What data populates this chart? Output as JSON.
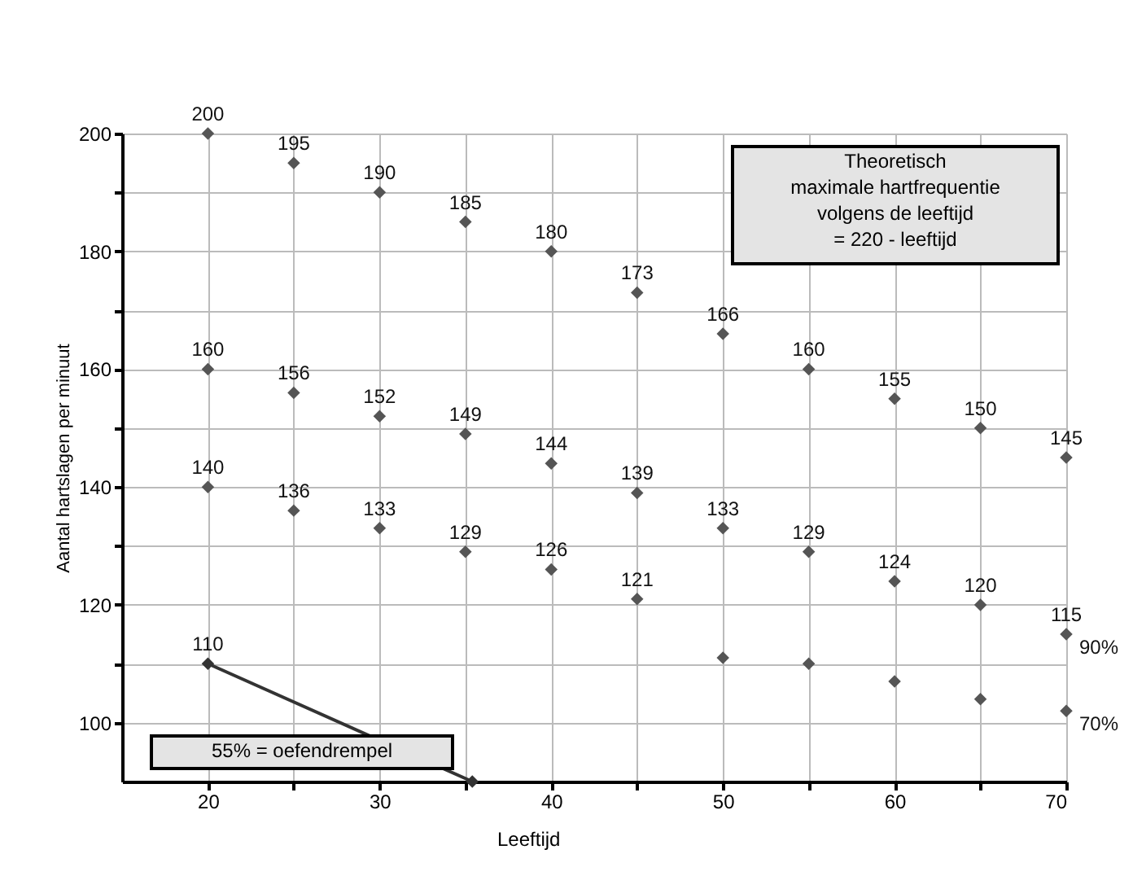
{
  "chart_data": {
    "type": "scatter",
    "xlabel": "Leeftijd",
    "ylabel": "Aantal hartslagen per minuut",
    "x": [
      20,
      25,
      30,
      35,
      40,
      45,
      50,
      55,
      60,
      65,
      70
    ],
    "xlim": [
      15,
      70
    ],
    "xticks": [
      20,
      {
        "value": 25,
        "label": null
      },
      30,
      {
        "value": 35,
        "label": null
      },
      40,
      {
        "value": 45,
        "label": null
      },
      50,
      {
        "value": 55,
        "label": null
      },
      60,
      {
        "value": 65,
        "label": null
      },
      70
    ],
    "ylim": [
      90,
      200
    ],
    "yticks": [
      100,
      {
        "value": 110,
        "label": null
      },
      120,
      {
        "value": 130,
        "label": null
      },
      140,
      {
        "value": 150,
        "label": null
      },
      160,
      {
        "value": 170,
        "label": null
      },
      180,
      {
        "value": 190,
        "label": null
      },
      200
    ],
    "grid": true,
    "marker": "diamond",
    "series": [
      {
        "color": "#555555",
        "values": [
          200,
          195,
          190,
          185,
          180,
          173,
          166,
          160,
          155,
          150,
          145
        ],
        "value_labels": [
          "200",
          "195",
          "190",
          "185",
          "180",
          "173",
          "166",
          "160",
          "155",
          "150",
          "145"
        ]
      },
      {
        "name": "90%",
        "color": "#555555",
        "values": [
          160,
          156,
          152,
          149,
          144,
          139,
          133,
          129,
          124,
          120,
          115
        ],
        "value_labels": [
          "160",
          "156",
          "152",
          "149",
          "144",
          "139",
          "133",
          "129",
          "124",
          "120",
          "115"
        ]
      },
      {
        "name": "70%",
        "color": "#555555",
        "values": [
          140,
          136,
          133,
          129,
          126,
          121,
          111,
          110,
          107,
          104,
          102
        ],
        "value_labels": [
          "140",
          "136",
          "133",
          "129",
          "126",
          "121",
          null,
          null,
          null,
          null,
          null
        ]
      },
      {
        "type": "line",
        "color": "#333333",
        "x": [
          20,
          35.4
        ],
        "values": [
          110,
          90
        ],
        "value_labels": [
          "110",
          null
        ]
      }
    ],
    "annotations": [
      "Theoretisch\nmaximale hartfrequentie\nvolgens de leeftijd\n= 220 - leeftijd",
      "55% = oefendrempel"
    ]
  }
}
